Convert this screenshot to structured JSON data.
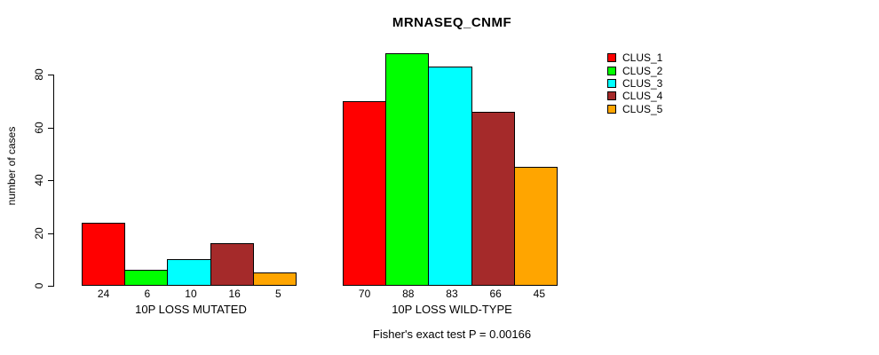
{
  "chart_data": {
    "type": "bar",
    "title": "MRNASEQ_CNMF",
    "ylabel": "number of cases",
    "xlabel": "",
    "caption": "Fisher's exact test P = 0.00166",
    "categories": [
      "10P LOSS MUTATED",
      "10P LOSS WILD-TYPE"
    ],
    "series": [
      {
        "name": "CLUS_1",
        "color": "#FF0000",
        "values": [
          24,
          70
        ]
      },
      {
        "name": "CLUS_2",
        "color": "#00FF00",
        "values": [
          6,
          88
        ]
      },
      {
        "name": "CLUS_3",
        "color": "#00FFFF",
        "values": [
          10,
          83
        ]
      },
      {
        "name": "CLUS_4",
        "color": "#A52A2A",
        "values": [
          16,
          66
        ]
      },
      {
        "name": "CLUS_5",
        "color": "#FFA500",
        "values": [
          5,
          45
        ]
      }
    ],
    "bar_value_labels_shown": true,
    "y_ticks": [
      0,
      20,
      40,
      60,
      80
    ],
    "ylim": [
      0,
      88
    ],
    "grid": false,
    "legend_position": "top-right",
    "background_color": "#FFFFFF",
    "axis_color": "#000000"
  }
}
